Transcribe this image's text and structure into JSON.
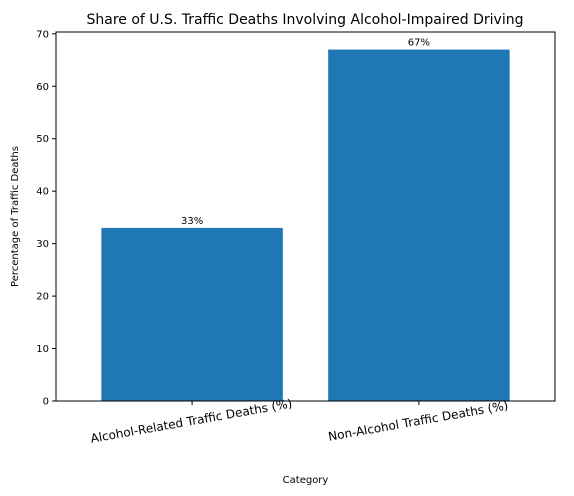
{
  "chart_data": {
    "type": "bar",
    "title": "Share of U.S. Traffic Deaths Involving Alcohol-Impaired Driving",
    "xlabel": "Category",
    "ylabel": "Percentage of Traffic Deaths",
    "categories": [
      "Alcohol-Related Traffic Deaths (%)",
      "Non-Alcohol Traffic Deaths (%)"
    ],
    "values": [
      33,
      67
    ],
    "data_labels": [
      "33%",
      "67%"
    ],
    "ylim": [
      0,
      70.35
    ],
    "yticks": [
      0,
      10,
      20,
      30,
      40,
      50,
      60,
      70
    ],
    "bar_color": "#1f77b4",
    "grid": false,
    "legend": "none"
  }
}
